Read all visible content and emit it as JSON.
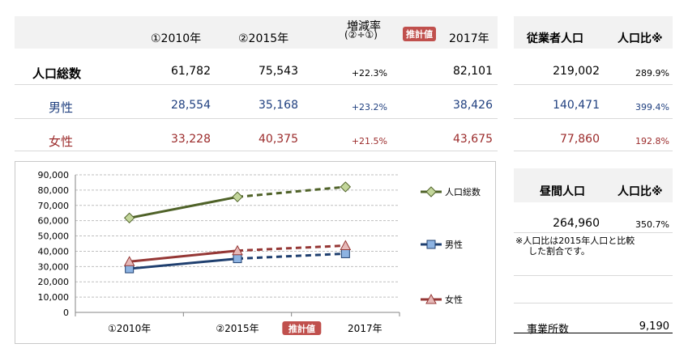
{
  "table": {
    "headers": {
      "col2010": "①2010年",
      "col2015": "②2015年",
      "growth_line1": "増減率",
      "growth_line2": "(②÷①)",
      "estimate_badge": "推計値",
      "col2017": "2017年",
      "workers": "従業者人口",
      "ratio": "人口比※"
    },
    "rows": [
      {
        "label": "人口総数",
        "v2010": "61,782",
        "v2015": "75,543",
        "growth": "+22.3%",
        "v2017": "82,101",
        "workers": "219,002",
        "ratio": "289.9%"
      },
      {
        "label": "男性",
        "v2010": "28,554",
        "v2015": "35,168",
        "growth": "+23.2%",
        "v2017": "38,426",
        "workers": "140,471",
        "ratio": "399.4%"
      },
      {
        "label": "女性",
        "v2010": "33,228",
        "v2015": "40,375",
        "growth": "+21.5%",
        "v2017": "43,675",
        "workers": "77,860",
        "ratio": "192.8%"
      }
    ]
  },
  "daytime": {
    "title": "昼間人口",
    "ratio_header": "人口比※",
    "value": "264,960",
    "ratio": "350.7%",
    "note_line1": "※人口比は2015年人口と比較",
    "note_line2": "した割合です。"
  },
  "establishments": {
    "label": "事業所数",
    "value": "9,190"
  },
  "colors": {
    "total": "#4f6228",
    "male": "#1f3f6f",
    "female": "#953735",
    "badge": "#c0504d"
  },
  "chart_data": {
    "type": "line",
    "categories": [
      "①2010年",
      "②2015年",
      "2017年"
    ],
    "estimate_badge": "推計値",
    "ylim": [
      0,
      90000
    ],
    "yticks": [
      "0",
      "10,000",
      "20,000",
      "30,000",
      "40,000",
      "50,000",
      "60,000",
      "70,000",
      "80,000",
      "90,000"
    ],
    "grid": true,
    "legend_placement": "right",
    "series": [
      {
        "name": "人口総数",
        "values": [
          61782,
          75543,
          82101
        ],
        "color": "#4f6228",
        "marker": "diamond",
        "marker_fill": "#c3d69b"
      },
      {
        "name": "男性",
        "values": [
          28554,
          35168,
          38426
        ],
        "color": "#1f3f6f",
        "marker": "square",
        "marker_fill": "#8db3e2"
      },
      {
        "name": "女性",
        "values": [
          33228,
          40375,
          43675
        ],
        "color": "#953735",
        "marker": "triangle",
        "marker_fill": "#e6b9b8"
      }
    ]
  }
}
